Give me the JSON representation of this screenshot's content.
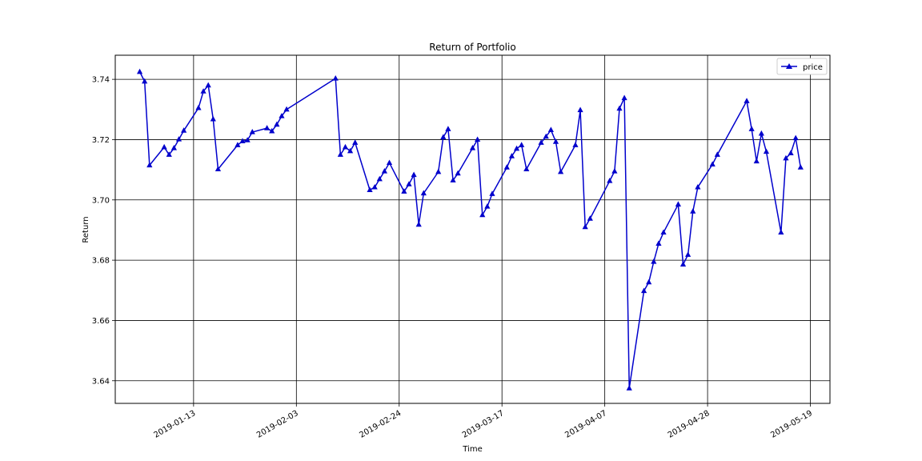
{
  "chart_data": {
    "type": "line",
    "title": "Return of Portfolio",
    "xlabel": "Time",
    "ylabel": "Return",
    "grid": true,
    "legend_position": "top-right",
    "xlim": [
      "2018-12-28",
      "2019-05-23"
    ],
    "ylim": [
      3.6325,
      3.748
    ],
    "x_ticks": [
      "2019-01-13",
      "2019-02-03",
      "2019-02-24",
      "2019-03-17",
      "2019-04-07",
      "2019-04-28",
      "2019-05-19"
    ],
    "y_ticks": [
      "3.64",
      "3.66",
      "3.68",
      "3.70",
      "3.72",
      "3.74"
    ],
    "series": [
      {
        "name": "price",
        "color": "#0000cc",
        "marker": "triangle-up",
        "x": [
          "2019-01-02",
          "2019-01-03",
          "2019-01-04",
          "2019-01-07",
          "2019-01-08",
          "2019-01-09",
          "2019-01-10",
          "2019-01-11",
          "2019-01-14",
          "2019-01-15",
          "2019-01-16",
          "2019-01-17",
          "2019-01-18",
          "2019-01-22",
          "2019-01-23",
          "2019-01-24",
          "2019-01-25",
          "2019-01-28",
          "2019-01-29",
          "2019-01-30",
          "2019-01-31",
          "2019-02-01",
          "2019-02-11",
          "2019-02-12",
          "2019-02-13",
          "2019-02-14",
          "2019-02-15",
          "2019-02-18",
          "2019-02-19",
          "2019-02-20",
          "2019-02-21",
          "2019-02-22",
          "2019-02-25",
          "2019-02-26",
          "2019-02-27",
          "2019-02-28",
          "2019-03-01",
          "2019-03-04",
          "2019-03-05",
          "2019-03-06",
          "2019-03-07",
          "2019-03-08",
          "2019-03-11",
          "2019-03-12",
          "2019-03-13",
          "2019-03-14",
          "2019-03-15",
          "2019-03-18",
          "2019-03-19",
          "2019-03-20",
          "2019-03-21",
          "2019-03-22",
          "2019-03-25",
          "2019-03-26",
          "2019-03-27",
          "2019-03-28",
          "2019-03-29",
          "2019-04-01",
          "2019-04-02",
          "2019-04-03",
          "2019-04-04",
          "2019-04-08",
          "2019-04-09",
          "2019-04-10",
          "2019-04-11",
          "2019-04-12",
          "2019-04-15",
          "2019-04-16",
          "2019-04-17",
          "2019-04-18",
          "2019-04-19",
          "2019-04-22",
          "2019-04-23",
          "2019-04-24",
          "2019-04-25",
          "2019-04-26",
          "2019-04-29",
          "2019-04-30",
          "2019-05-06",
          "2019-05-07",
          "2019-05-08",
          "2019-05-09",
          "2019-05-10",
          "2019-05-13",
          "2019-05-14",
          "2019-05-15",
          "2019-05-16",
          "2019-05-17"
        ],
        "y": [
          3.7425,
          3.7393,
          3.7115,
          3.7175,
          3.715,
          3.7172,
          3.7201,
          3.723,
          3.7305,
          3.736,
          3.738,
          3.7268,
          3.7102,
          3.7182,
          3.7195,
          3.7198,
          3.7225,
          3.7238,
          3.7228,
          3.725,
          3.7278,
          3.73,
          3.7403,
          3.715,
          3.7175,
          3.7162,
          3.719,
          3.7033,
          3.7042,
          3.7069,
          3.7095,
          3.7123,
          3.7028,
          3.7052,
          3.7083,
          3.6918,
          3.7022,
          3.7093,
          3.7208,
          3.7235,
          3.7065,
          3.7088,
          3.7172,
          3.72,
          3.695,
          3.6978,
          3.702,
          3.7108,
          3.7145,
          3.717,
          3.7182,
          3.7102,
          3.719,
          3.721,
          3.7232,
          3.7193,
          3.7093,
          3.7182,
          3.7298,
          3.691,
          3.6938,
          3.7063,
          3.7095,
          3.7303,
          3.7338,
          3.6375,
          3.6698,
          3.6727,
          3.6795,
          3.6855,
          3.6892,
          3.6985,
          3.6786,
          3.6818,
          3.6962,
          3.7042,
          3.7118,
          3.715,
          3.7328,
          3.7235,
          3.7128,
          3.722,
          3.716,
          3.6892,
          3.7138,
          3.7155,
          3.7205,
          3.7108
        ]
      }
    ]
  }
}
